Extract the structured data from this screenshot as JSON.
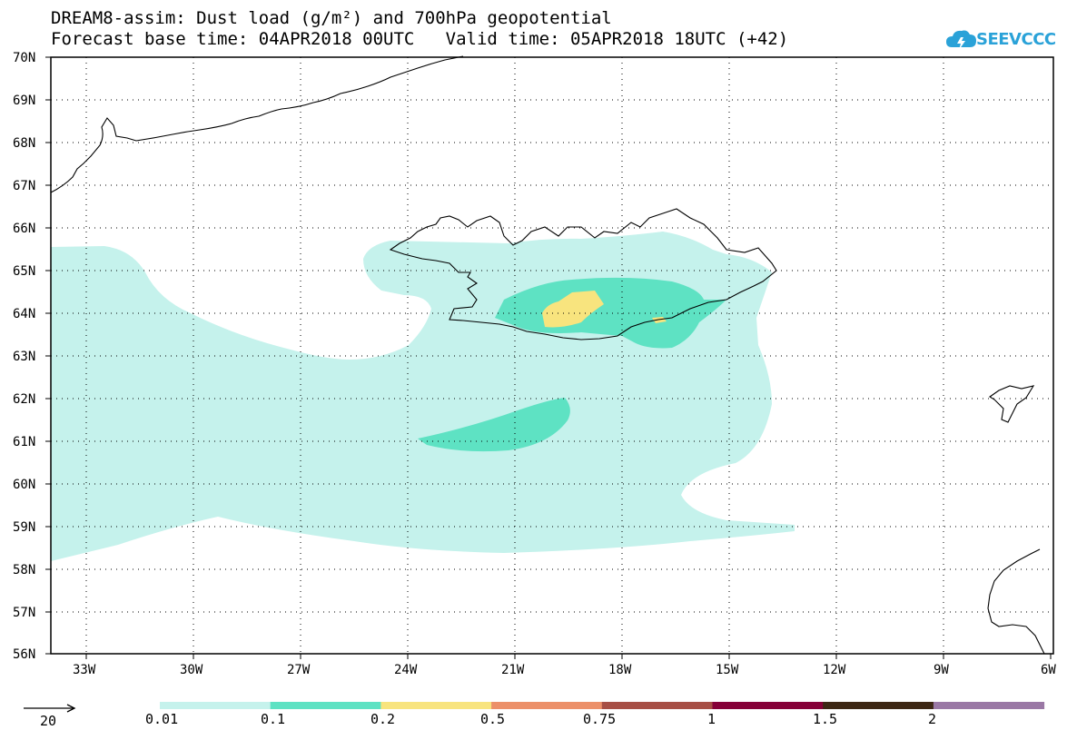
{
  "title": {
    "line1": "DREAM8-assim: Dust load (g/m²) and 700hPa geopotential",
    "line2": "Forecast base time: 04APR2018 00UTC   Valid time: 05APR2018 18UTC (+42)"
  },
  "logo": {
    "text": "SEEVCCC",
    "icon": "cloud-icon"
  },
  "lat_labels": [
    "70N",
    "69N",
    "68N",
    "67N",
    "66N",
    "65N",
    "64N",
    "63N",
    "62N",
    "61N",
    "60N",
    "59N",
    "58N",
    "57N",
    "56N"
  ],
  "lon_labels": [
    "33W",
    "30W",
    "27W",
    "24W",
    "21W",
    "18W",
    "15W",
    "12W",
    "9W",
    "6W"
  ],
  "legend": {
    "colors": [
      "#c5f2ec",
      "#5ee2c3",
      "#f8e47e",
      "#ec9069",
      "#a74f45",
      "#860038",
      "#3d2714",
      "#9a78a5"
    ],
    "labels": [
      "0.01",
      "0.1",
      "0.2",
      "0.5",
      "0.75",
      "1",
      "1.5",
      "2"
    ],
    "arrow_label": "20"
  },
  "colors": {
    "level_0_01": "#c5f2ec",
    "level_0_1": "#5ee2c3",
    "level_0_2": "#f8e47e",
    "coast": "#000000"
  }
}
